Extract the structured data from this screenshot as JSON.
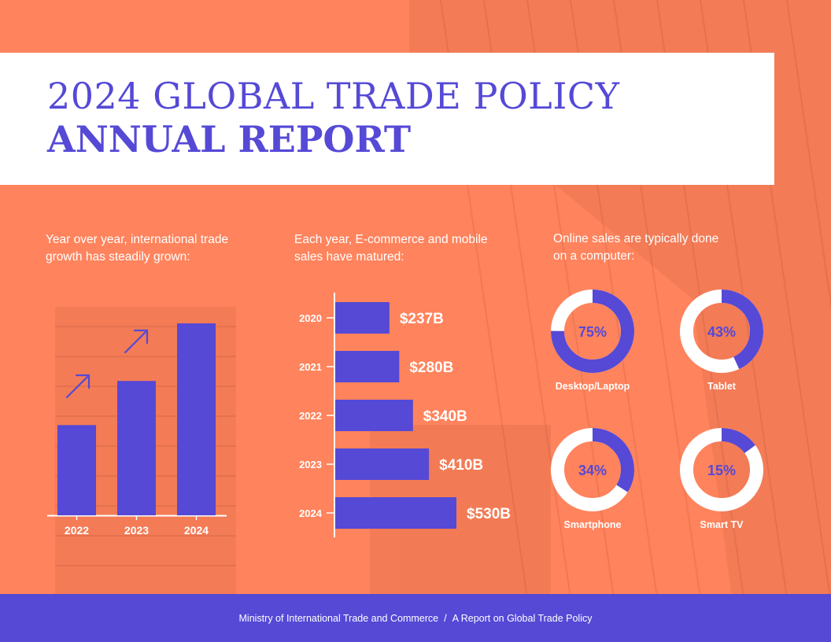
{
  "title": {
    "line1": "2024 GLOBAL TRADE POLICY",
    "line2": "ANNUAL REPORT"
  },
  "sections": {
    "growth_intro": {
      "line1": "Year over year, international trade",
      "line2": "growth has steadily grown:"
    },
    "ecommerce_intro": {
      "line1": "Each year, E-commerce and mobile",
      "line2": "sales have matured:"
    },
    "devices_intro": {
      "line1": "Online sales are typically done",
      "line2": "on a computer:"
    }
  },
  "colors": {
    "background": "#FF835C",
    "accent": "#5549D6",
    "white": "#FFFFFF"
  },
  "icons": [
    "arrow-up-right-icon",
    "arrow-up-right-icon"
  ],
  "chart_data": [
    {
      "type": "bar",
      "orientation": "vertical",
      "categories": [
        "2022",
        "2023",
        "2024"
      ],
      "values": [
        47,
        70,
        100
      ],
      "ylim": [
        0,
        100
      ],
      "title": "",
      "xlabel": "",
      "ylabel": ""
    },
    {
      "type": "bar",
      "orientation": "horizontal",
      "categories": [
        "2020",
        "2021",
        "2022",
        "2023",
        "2024"
      ],
      "values": [
        237,
        280,
        340,
        410,
        530
      ],
      "labels": [
        "$237B",
        "$280B",
        "$340B",
        "$410B",
        "$530B"
      ],
      "unit": "$B",
      "title": "",
      "xlabel": "",
      "ylabel": ""
    },
    {
      "type": "pie",
      "style": "donut",
      "categories": [
        "Desktop/Laptop",
        "Tablet",
        "Smartphone",
        "Smart TV"
      ],
      "values": [
        75,
        43,
        34,
        15
      ],
      "labels": [
        "75%",
        "43%",
        "34%",
        "15%"
      ]
    }
  ],
  "footer": {
    "org": "Ministry of International Trade and Commerce",
    "separator": "/",
    "report": "A Report on Global Trade Policy"
  }
}
